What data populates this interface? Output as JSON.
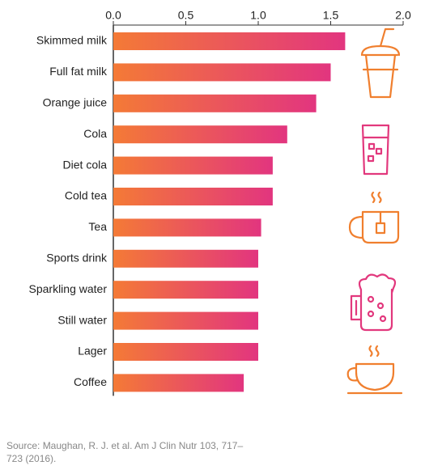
{
  "chart_data": {
    "type": "hbar",
    "categories": [
      "Skimmed milk",
      "Full fat milk",
      "Orange juice",
      "Cola",
      "Diet cola",
      "Cold tea",
      "Tea",
      "Sports drink",
      "Sparkling water",
      "Still water",
      "Lager",
      "Coffee"
    ],
    "values": [
      1.6,
      1.5,
      1.4,
      1.2,
      1.1,
      1.1,
      1.02,
      1.0,
      1.0,
      1.0,
      1.0,
      0.9
    ],
    "colors": [
      "#f47a36",
      "#e2357f"
    ],
    "xlim": [
      0,
      2
    ],
    "xticks": [
      {
        "value": 0,
        "label": "0.0"
      },
      0.5,
      {
        "value": 1,
        "label": "1.0"
      },
      1.5,
      {
        "value": 2,
        "label": "2.0"
      }
    ],
    "source": "Source: Maughan, R. J. et al. Am J Clin Nutr 103, 717–723 (2016)."
  }
}
